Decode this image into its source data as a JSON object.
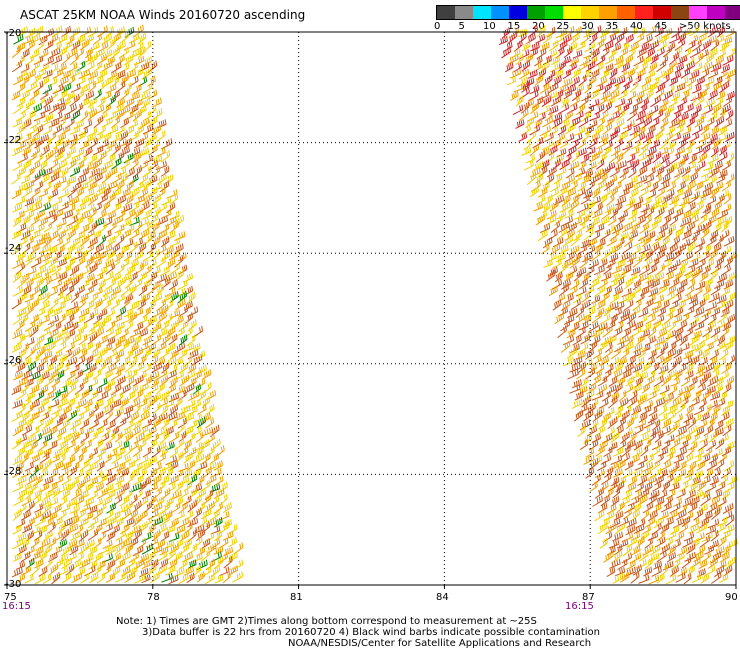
{
  "title": "ASCAT 25KM NOAA Winds 20160720 ascending",
  "legend": {
    "labels": [
      "0",
      "5",
      "10",
      "15",
      "20",
      "25",
      "30",
      "35",
      "40",
      "45",
      ">50 knots"
    ],
    "colors": [
      "#404040",
      "#8a8a8a",
      "#00e5ff",
      "#0090ff",
      "#0000e0",
      "#00a000",
      "#00dd00",
      "#ffff00",
      "#ffd200",
      "#ffa000",
      "#ff6000",
      "#ff2020",
      "#d00000",
      "#8b4513",
      "#ff40ff",
      "#c000c0",
      "#800080"
    ]
  },
  "axes": {
    "y_labels": [
      "-20",
      "-22",
      "-24",
      "-26",
      "-28",
      "-30"
    ],
    "x_labels": [
      "75",
      "78",
      "81",
      "84",
      "87",
      "90"
    ],
    "lat_range": [
      -30,
      -20
    ],
    "lon_range": [
      75,
      90
    ]
  },
  "swaths": [
    {
      "time": "16:15",
      "top_lon_west": 75,
      "top_lon_east": 77.9,
      "bottom_lon_east": 79.9
    },
    {
      "time": "16:15",
      "top_lon_west": 85.0,
      "bottom_lon_west": 87.3,
      "top_lon_east": 90
    }
  ],
  "notes": {
    "line1": "Note: 1) Times are GMT 2)Times along bottom correspond to measurement at ~25S",
    "line2": "3)Data buffer is 22 hrs from 20160720 4) Black wind barbs indicate possible contamination",
    "line3": "NOAA/NESDIS/Center for Satellite Applications and Research"
  }
}
